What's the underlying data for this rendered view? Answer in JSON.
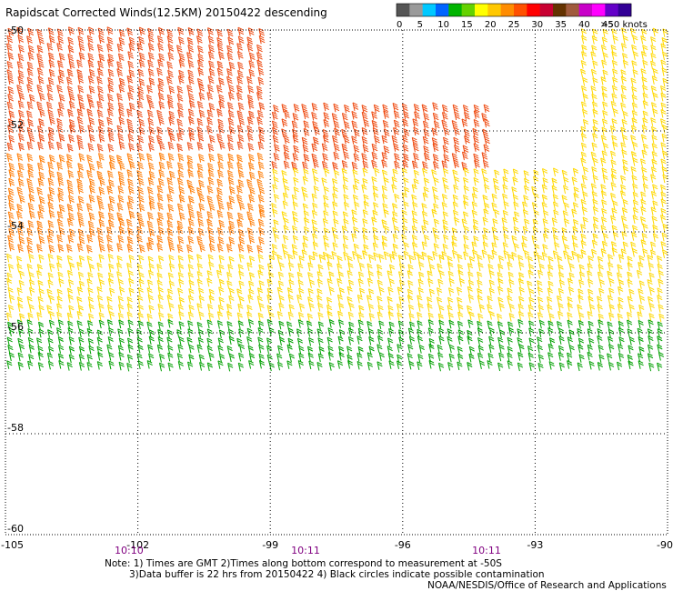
{
  "title": "Rapidscat Corrected Winds(12.5KM) 20150422 descending",
  "notes": {
    "line1": "Note: 1) Times are GMT 2)Times along bottom correspond to measurement at -50S",
    "line2": "3)Data buffer is 22 hrs from 20150422 4) Black circles indicate possible contamination",
    "credit": "NOAA/NESDIS/Office of Research and Applications"
  },
  "colorbar": {
    "labels": [
      "0",
      "5",
      "10",
      "15",
      "20",
      "25",
      "30",
      "35",
      "40",
      "45",
      ">50 knots"
    ],
    "colors": [
      "#555555",
      "#9a9a9a",
      "#00c8ff",
      "#0064ff",
      "#00b400",
      "#64d200",
      "#ffff00",
      "#ffc800",
      "#ff8c00",
      "#ff5000",
      "#ff0000",
      "#c80032",
      "#643200",
      "#a05a3c",
      "#c800c8",
      "#ff00ff",
      "#6400c8",
      "#320096"
    ]
  },
  "chart_data": {
    "type": "scatter",
    "title": "Rapidscat Corrected Winds(12.5KM) 20150422 descending",
    "xlabel": "",
    "ylabel": "",
    "xlim": [
      -105,
      -90
    ],
    "ylim": [
      -60,
      -50
    ],
    "x_ticks": [
      "-105",
      "-102",
      "-99",
      "-96",
      "-93",
      "-90"
    ],
    "y_ticks": [
      "-50",
      "-52",
      "-54",
      "-56",
      "-58",
      "-60"
    ],
    "time_labels": [
      {
        "lon": -102.2,
        "label": "10:10"
      },
      {
        "lon": -98.2,
        "label": "10:11"
      },
      {
        "lon": -94.1,
        "label": "10:11"
      }
    ],
    "grid": true,
    "wind_barbs": {
      "units": "knots",
      "regions": [
        {
          "lon": [
            -105,
            -99
          ],
          "lat": [
            -50.0,
            -52.5
          ],
          "speed_kt": 33
        },
        {
          "lon": [
            -99,
            -94
          ],
          "lat": [
            -51.5,
            -52.8
          ],
          "speed_kt": 32
        },
        {
          "lon": [
            -105,
            -99
          ],
          "lat": [
            -52.5,
            -54.5
          ],
          "speed_kt": 28
        },
        {
          "lon": [
            -99,
            -92
          ],
          "lat": [
            -52.8,
            -54.5
          ],
          "speed_kt": 24
        },
        {
          "lon": [
            -92,
            -90
          ],
          "lat": [
            -50.0,
            -54.5
          ],
          "speed_kt": 20
        },
        {
          "lon": [
            -105,
            -90
          ],
          "lat": [
            -54.5,
            -55.8
          ],
          "speed_kt": 24
        },
        {
          "lon": [
            -105,
            -90
          ],
          "lat": [
            -55.8,
            -56.8
          ],
          "speed_kt": 18
        }
      ]
    }
  }
}
